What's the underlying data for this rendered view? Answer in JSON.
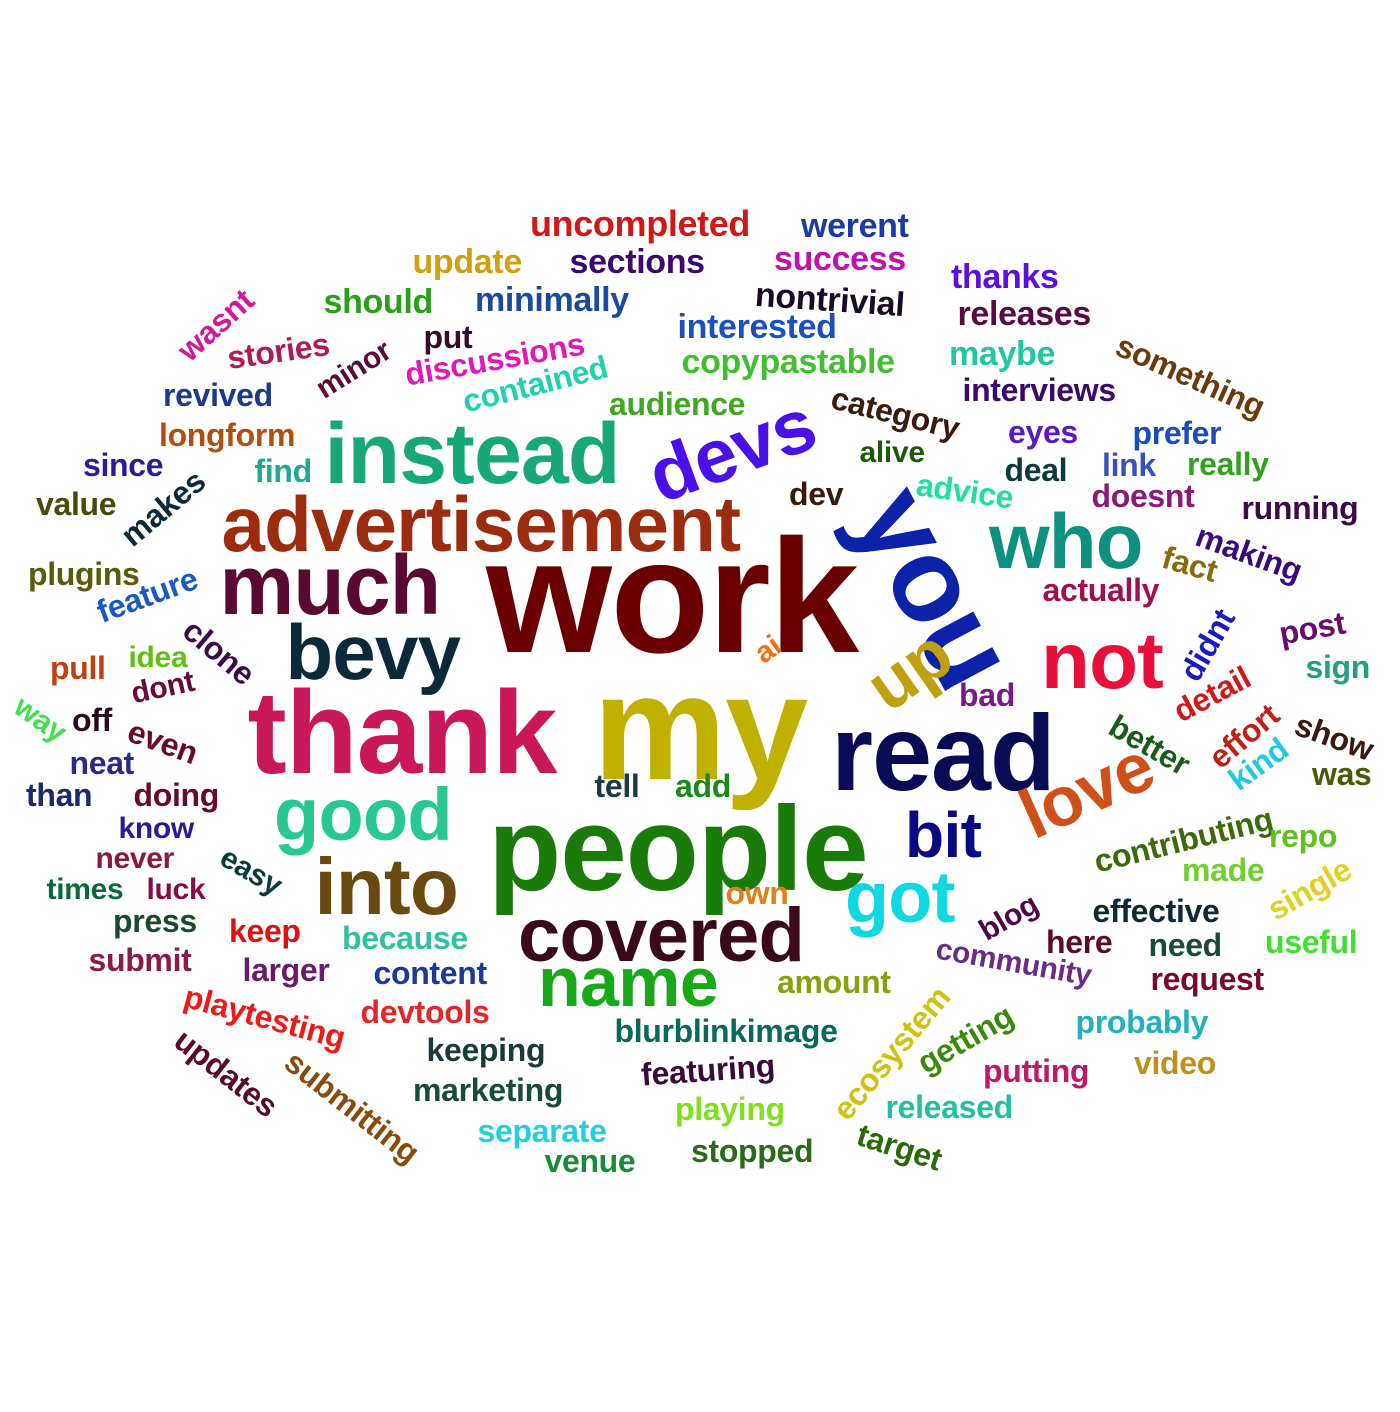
{
  "words": [
    {
      "text": "work",
      "color": "#6b0000"
    },
    {
      "text": "my",
      "color": "#c0b000"
    },
    {
      "text": "thank",
      "color": "#c8185a"
    },
    {
      "text": "people",
      "color": "#1a7a0a"
    },
    {
      "text": "read",
      "color": "#0a0a55"
    },
    {
      "text": "you",
      "color": "#0c22a8"
    },
    {
      "text": "advertisement",
      "color": "#9c2c10"
    },
    {
      "text": "instead",
      "color": "#18a878"
    },
    {
      "text": "much",
      "color": "#5a0a30"
    },
    {
      "text": "devs",
      "color": "#4a10e8"
    },
    {
      "text": "who",
      "color": "#0e9080"
    },
    {
      "text": "bevy",
      "color": "#0a2a3a"
    },
    {
      "text": "not",
      "color": "#e8103a"
    },
    {
      "text": "love",
      "color": "#d0501a"
    },
    {
      "text": "good",
      "color": "#28c890"
    },
    {
      "text": "into",
      "color": "#6a4a10"
    },
    {
      "text": "covered",
      "color": "#3a0a1a"
    },
    {
      "text": "name",
      "color": "#18a818"
    },
    {
      "text": "got",
      "color": "#10d8e0"
    },
    {
      "text": "bit",
      "color": "#0a0a80"
    },
    {
      "text": "up",
      "color": "#c0a010"
    },
    {
      "text": "uncompleted",
      "color": "#d01818"
    },
    {
      "text": "werent",
      "color": "#1a3aa8"
    },
    {
      "text": "update",
      "color": "#d0a010"
    },
    {
      "text": "sections",
      "color": "#3a0a6a"
    },
    {
      "text": "success",
      "color": "#c010b0"
    },
    {
      "text": "thanks",
      "color": "#5a10e0"
    },
    {
      "text": "should",
      "color": "#2aa018"
    },
    {
      "text": "minimally",
      "color": "#1a4aa0"
    },
    {
      "text": "nontrivial",
      "color": "#1a0a2a"
    },
    {
      "text": "releases",
      "color": "#5a0a40"
    },
    {
      "text": "interested",
      "color": "#1a50c0"
    },
    {
      "text": "wasnt",
      "color": "#d0189a"
    },
    {
      "text": "stories",
      "color": "#b01858"
    },
    {
      "text": "put",
      "color": "#3a0a2a"
    },
    {
      "text": "discussions",
      "color": "#e018b8"
    },
    {
      "text": "minor",
      "color": "#5a0a3a"
    },
    {
      "text": "copypastable",
      "color": "#40c030"
    },
    {
      "text": "maybe",
      "color": "#20c8a0"
    },
    {
      "text": "something",
      "color": "#6a3a0a"
    },
    {
      "text": "revived",
      "color": "#1a3a90"
    },
    {
      "text": "contained",
      "color": "#20d0b0"
    },
    {
      "text": "audience",
      "color": "#40a820"
    },
    {
      "text": "interviews",
      "color": "#3a0a6a"
    },
    {
      "text": "category",
      "color": "#3a1a0a"
    },
    {
      "text": "longform",
      "color": "#b05010"
    },
    {
      "text": "eyes",
      "color": "#5a1ac0"
    },
    {
      "text": "prefer",
      "color": "#1a4ac0"
    },
    {
      "text": "alive",
      "color": "#1a5a0a"
    },
    {
      "text": "since",
      "color": "#2a1aa0"
    },
    {
      "text": "find",
      "color": "#20a890"
    },
    {
      "text": "deal",
      "color": "#0a3a3a"
    },
    {
      "text": "link",
      "color": "#3a50c0"
    },
    {
      "text": "really",
      "color": "#30a020"
    },
    {
      "text": "makes",
      "color": "#0a2a3a"
    },
    {
      "text": "advice",
      "color": "#20e0a0"
    },
    {
      "text": "value",
      "color": "#4a4a0a"
    },
    {
      "text": "dev",
      "color": "#3a1a0a"
    },
    {
      "text": "doesnt",
      "color": "#8a1a7a"
    },
    {
      "text": "running",
      "color": "#3a0a4a"
    },
    {
      "text": "making",
      "color": "#3a0a7a"
    },
    {
      "text": "plugins",
      "color": "#5a5a0a"
    },
    {
      "text": "fact",
      "color": "#8a6a0a"
    },
    {
      "text": "feature",
      "color": "#1a5ac0"
    },
    {
      "text": "actually",
      "color": "#a01050"
    },
    {
      "text": "clone",
      "color": "#3a0a4a"
    },
    {
      "text": "didnt",
      "color": "#1a1ac0"
    },
    {
      "text": "post",
      "color": "#6a0a6a"
    },
    {
      "text": "pull",
      "color": "#c04010"
    },
    {
      "text": "idea",
      "color": "#60c010"
    },
    {
      "text": "ai",
      "color": "#f07010"
    },
    {
      "text": "sign",
      "color": "#20a080"
    },
    {
      "text": "dont",
      "color": "#6a0a3a"
    },
    {
      "text": "way",
      "color": "#40e050"
    },
    {
      "text": "bad",
      "color": "#7a1a8a"
    },
    {
      "text": "detail",
      "color": "#d01818"
    },
    {
      "text": "off",
      "color": "#2a0a1a"
    },
    {
      "text": "even",
      "color": "#6a0a2a"
    },
    {
      "text": "effort",
      "color": "#c0201a"
    },
    {
      "text": "show",
      "color": "#3a1a0a"
    },
    {
      "text": "better",
      "color": "#1a5a1a"
    },
    {
      "text": "neat",
      "color": "#2a2a8a"
    },
    {
      "text": "kind",
      "color": "#20c8e0"
    },
    {
      "text": "was",
      "color": "#4a5a0a"
    },
    {
      "text": "than",
      "color": "#1a2a6a"
    },
    {
      "text": "doing",
      "color": "#6a0a2a"
    },
    {
      "text": "tell",
      "color": "#1a3a4a"
    },
    {
      "text": "add",
      "color": "#1a8a1a"
    },
    {
      "text": "know",
      "color": "#2a1a9a"
    },
    {
      "text": "contributing",
      "color": "#3a6a0a"
    },
    {
      "text": "repo",
      "color": "#60c020"
    },
    {
      "text": "never",
      "color": "#8a1a3a"
    },
    {
      "text": "easy",
      "color": "#0a3a3a"
    },
    {
      "text": "made",
      "color": "#70d030"
    },
    {
      "text": "times",
      "color": "#0a6a3a"
    },
    {
      "text": "luck",
      "color": "#8a0a4a"
    },
    {
      "text": "own",
      "color": "#e08010"
    },
    {
      "text": "single",
      "color": "#e0d020"
    },
    {
      "text": "press",
      "color": "#1a4a2a"
    },
    {
      "text": "blog",
      "color": "#4a0a4a"
    },
    {
      "text": "effective",
      "color": "#0a2a3a"
    },
    {
      "text": "keep",
      "color": "#e01010"
    },
    {
      "text": "because",
      "color": "#30c0a0"
    },
    {
      "text": "here",
      "color": "#5a0a2a"
    },
    {
      "text": "need",
      "color": "#1a4a3a"
    },
    {
      "text": "useful",
      "color": "#40e030"
    },
    {
      "text": "submit",
      "color": "#8a1a4a"
    },
    {
      "text": "community",
      "color": "#6a2a8a"
    },
    {
      "text": "larger",
      "color": "#6a1a6a"
    },
    {
      "text": "content",
      "color": "#1a3a9a"
    },
    {
      "text": "amount",
      "color": "#8aa010"
    },
    {
      "text": "request",
      "color": "#7a0a2a"
    },
    {
      "text": "playtesting",
      "color": "#f01818"
    },
    {
      "text": "devtools",
      "color": "#e02828"
    },
    {
      "text": "blurblinkimage",
      "color": "#0a6a5a"
    },
    {
      "text": "ecosystem",
      "color": "#d0c010"
    },
    {
      "text": "getting",
      "color": "#3a8a0a"
    },
    {
      "text": "probably",
      "color": "#20b0c0"
    },
    {
      "text": "updates",
      "color": "#5a0a2a"
    },
    {
      "text": "keeping",
      "color": "#1a3a3a"
    },
    {
      "text": "submitting",
      "color": "#8a4a0a"
    },
    {
      "text": "featuring",
      "color": "#3a0a3a"
    },
    {
      "text": "putting",
      "color": "#c01868"
    },
    {
      "text": "video",
      "color": "#c0901a"
    },
    {
      "text": "marketing",
      "color": "#1a4a3a"
    },
    {
      "text": "playing",
      "color": "#80e020"
    },
    {
      "text": "released",
      "color": "#20c0a0"
    },
    {
      "text": "separate",
      "color": "#20d0e0"
    },
    {
      "text": "target",
      "color": "#2a6a0a"
    },
    {
      "text": "stopped",
      "color": "#2a6a1a"
    },
    {
      "text": "venue",
      "color": "#1a8a3a"
    }
  ]
}
